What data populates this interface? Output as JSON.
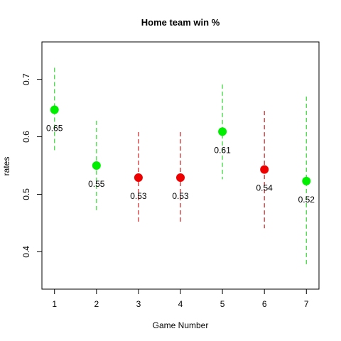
{
  "chart_data": {
    "type": "scatter",
    "title": "Home team win %",
    "xlabel": "Game Number",
    "ylabel": "rates",
    "xlim": [
      0.7,
      7.3
    ],
    "ylim": [
      0.335,
      0.765
    ],
    "x_ticks": [
      1,
      2,
      3,
      4,
      5,
      6,
      7
    ],
    "y_ticks": [
      0.4,
      0.5,
      0.6,
      0.7
    ],
    "x_tick_labels": [
      "1",
      "2",
      "3",
      "4",
      "5",
      "6",
      "7"
    ],
    "y_tick_labels": [
      "0.4",
      "0.5",
      "0.6",
      "0.7"
    ],
    "grid": false,
    "points": [
      {
        "x": 1,
        "y": 0.647,
        "lower": 0.573,
        "upper": 0.72,
        "label": "0.65",
        "color": "#00ee00"
      },
      {
        "x": 2,
        "y": 0.55,
        "lower": 0.472,
        "upper": 0.628,
        "label": "0.55",
        "color": "#00ee00"
      },
      {
        "x": 3,
        "y": 0.529,
        "lower": 0.45,
        "upper": 0.608,
        "label": "0.53",
        "color": "#ee0000"
      },
      {
        "x": 4,
        "y": 0.529,
        "lower": 0.45,
        "upper": 0.608,
        "label": "0.53",
        "color": "#ee0000"
      },
      {
        "x": 5,
        "y": 0.609,
        "lower": 0.526,
        "upper": 0.691,
        "label": "0.61",
        "color": "#00ee00"
      },
      {
        "x": 6,
        "y": 0.543,
        "lower": 0.441,
        "upper": 0.645,
        "label": "0.54",
        "color": "#ee0000"
      },
      {
        "x": 7,
        "y": 0.523,
        "lower": 0.375,
        "upper": 0.67,
        "label": "0.52",
        "color": "#00ee00"
      }
    ],
    "interval_colors": {
      "#00ee00": "#33dd33",
      "#ee0000": "#cc2222"
    }
  }
}
